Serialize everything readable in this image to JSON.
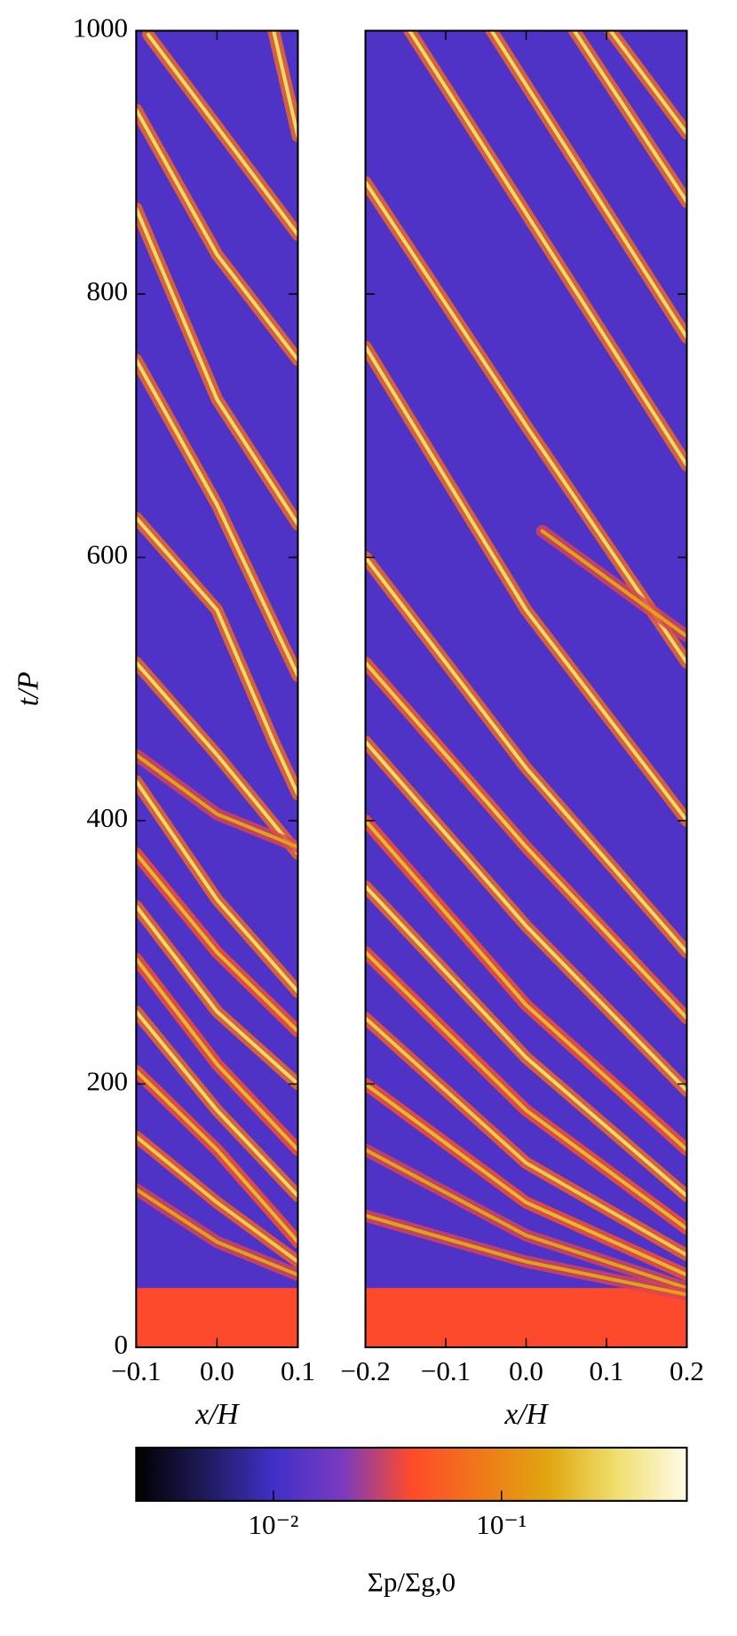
{
  "chart_data": [
    {
      "type": "heatmap",
      "xlabel": "x/H",
      "ylabel": "t/P",
      "xlim": [
        -0.1,
        0.1
      ],
      "ylim": [
        0,
        1000
      ],
      "xticks": [
        {
          "value": -0.1,
          "label": "−0.1"
        },
        {
          "value": 0,
          "label": "0.0"
        },
        0.1
      ],
      "yticks": [
        0,
        200,
        400,
        600,
        800,
        1000
      ],
      "background_value": 0.012,
      "base_layer": {
        "tlim": [
          0,
          45
        ],
        "value": 0.04
      },
      "filaments": [
        {
          "x": [
            -0.085,
            0.1
          ],
          "t": [
            997,
            845
          ],
          "value": 0.3
        },
        {
          "x": [
            -0.1,
            0,
            0.1
          ],
          "t": [
            940,
            830,
            750
          ],
          "value": 0.3
        },
        {
          "x": [
            -0.1,
            0,
            0.1
          ],
          "t": [
            865,
            720,
            625
          ],
          "value": 0.3
        },
        {
          "x": [
            -0.1,
            0,
            0.1
          ],
          "t": [
            750,
            640,
            510
          ],
          "value": 0.3
        },
        {
          "x": [
            -0.1,
            0,
            0.07,
            0.1
          ],
          "t": [
            630,
            560,
            460,
            420
          ],
          "value": 0.3
        },
        {
          "x": [
            -0.1,
            0,
            0.1
          ],
          "t": [
            520,
            450,
            375
          ],
          "value": 0.3
        },
        {
          "x": [
            -0.1,
            0,
            0.1
          ],
          "t": [
            450,
            405,
            380
          ],
          "value": 0.15
        },
        {
          "x": [
            -0.1,
            0,
            0.1
          ],
          "t": [
            430,
            340,
            270
          ],
          "value": 0.3
        },
        {
          "x": [
            -0.1,
            0,
            0.1
          ],
          "t": [
            375,
            300,
            240
          ],
          "value": 0.2
        },
        {
          "x": [
            -0.1,
            0,
            0.1
          ],
          "t": [
            335,
            255,
            200
          ],
          "value": 0.3
        },
        {
          "x": [
            -0.1,
            0,
            0.1
          ],
          "t": [
            295,
            215,
            150
          ],
          "value": 0.2
        },
        {
          "x": [
            -0.1,
            0,
            0.1
          ],
          "t": [
            255,
            180,
            115
          ],
          "value": 0.3
        },
        {
          "x": [
            -0.1,
            0,
            0.1
          ],
          "t": [
            210,
            150,
            80
          ],
          "value": 0.2
        },
        {
          "x": [
            -0.1,
            0,
            0.1
          ],
          "t": [
            160,
            110,
            65
          ],
          "value": 0.25
        },
        {
          "x": [
            -0.1,
            0,
            0.1
          ],
          "t": [
            120,
            80,
            55
          ],
          "value": 0.15
        },
        {
          "x": [
            0.07,
            0.1
          ],
          "t": [
            1000,
            920
          ],
          "value": 0.3
        }
      ]
    },
    {
      "type": "heatmap",
      "xlabel": "x/H",
      "xlim": [
        -0.2,
        0.2
      ],
      "ylim": [
        0,
        1000
      ],
      "xticks": [
        {
          "value": -0.2,
          "label": "−0.2"
        },
        {
          "value": -0.1,
          "label": "−0.1"
        },
        {
          "value": 0,
          "label": "0.0"
        },
        0.1,
        0.2
      ],
      "background_value": 0.012,
      "base_layer": {
        "tlim": [
          0,
          45
        ],
        "value": 0.04
      },
      "filaments": [
        {
          "x": [
            -0.145,
            0.2
          ],
          "t": [
            1000,
            670
          ],
          "value": 0.3
        },
        {
          "x": [
            -0.043,
            0.2
          ],
          "t": [
            1000,
            767
          ],
          "value": 0.3
        },
        {
          "x": [
            0.06,
            0.2
          ],
          "t": [
            1000,
            870
          ],
          "value": 0.3
        },
        {
          "x": [
            0.105,
            0.2
          ],
          "t": [
            1000,
            922
          ],
          "value": 0.3
        },
        {
          "x": [
            -0.2,
            0,
            0.2
          ],
          "t": [
            885,
            700,
            520
          ],
          "value": 0.3
        },
        {
          "x": [
            -0.2,
            0,
            0.2
          ],
          "t": [
            760,
            560,
            400
          ],
          "value": 0.3
        },
        {
          "x": [
            -0.2,
            0,
            0.2
          ],
          "t": [
            600,
            440,
            300
          ],
          "value": 0.3
        },
        {
          "x": [
            -0.2,
            0,
            0.2
          ],
          "t": [
            520,
            380,
            250
          ],
          "value": 0.25
        },
        {
          "x": [
            -0.2,
            0,
            0.2
          ],
          "t": [
            460,
            320,
            195
          ],
          "value": 0.3
        },
        {
          "x": [
            -0.2,
            0,
            0.2
          ],
          "t": [
            400,
            260,
            150
          ],
          "value": 0.2
        },
        {
          "x": [
            -0.2,
            0,
            0.2
          ],
          "t": [
            350,
            220,
            115
          ],
          "value": 0.3
        },
        {
          "x": [
            -0.2,
            0,
            0.2
          ],
          "t": [
            300,
            180,
            90
          ],
          "value": 0.2
        },
        {
          "x": [
            -0.2,
            0,
            0.2
          ],
          "t": [
            250,
            140,
            70
          ],
          "value": 0.25
        },
        {
          "x": [
            -0.2,
            0,
            0.2
          ],
          "t": [
            200,
            110,
            55
          ],
          "value": 0.2
        },
        {
          "x": [
            -0.2,
            0,
            0.2
          ],
          "t": [
            150,
            85,
            45
          ],
          "value": 0.15
        },
        {
          "x": [
            -0.2,
            0,
            0.2
          ],
          "t": [
            100,
            65,
            40
          ],
          "value": 0.15
        },
        {
          "x": [
            0.02,
            0.2
          ],
          "t": [
            620,
            540
          ],
          "value": 0.15
        }
      ]
    }
  ],
  "colorbar": {
    "label": "Σp/Σg,0",
    "log": true,
    "clim": [
      0.0025,
      0.65
    ],
    "ticks": [
      {
        "value": 0.01,
        "label": "10⁻²"
      },
      {
        "value": 0.1,
        "label": "10⁻¹"
      }
    ],
    "colormap": [
      "#000000",
      "#1e1a5a",
      "#4030c8",
      "#7a3ac0",
      "#ff4a2a",
      "#f07818",
      "#e0a810",
      "#f0e070",
      "#fffbe8"
    ]
  }
}
